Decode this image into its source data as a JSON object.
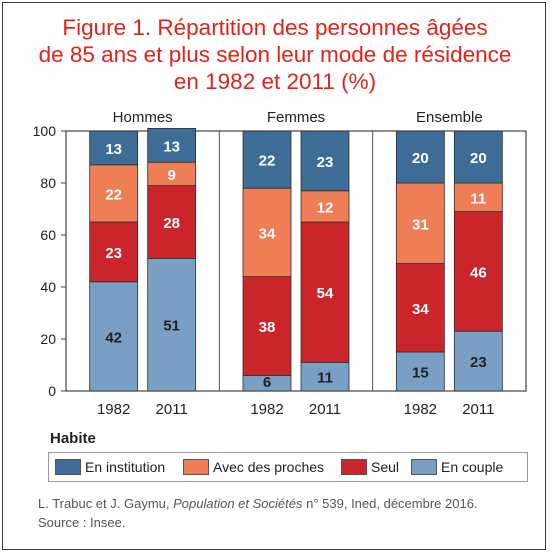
{
  "title_lines": [
    "Figure 1. Répartition des personnes âgées",
    "de 85 ans et plus selon leur mode de résidence",
    "en 1982 et 2011 (%)"
  ],
  "legend_title": "Habite",
  "source": {
    "authors": "L. Trabuc et J. Gaymu, ",
    "journal": "Population et Sociétés",
    "rest": " n° 539, Ined, décembre 2016.",
    "line2": "Source : Insee."
  },
  "colors": {
    "En institution": "#3d6d96",
    "Avec des proches": "#ef7e56",
    "Seul": "#c9252b",
    "En couple": "#7a9fc4",
    "label_dark": "#ffffff",
    "label_light": "#222222"
  },
  "chart_data": {
    "type": "bar",
    "stacked": true,
    "ylim": [
      0,
      100
    ],
    "yticks": [
      0,
      20,
      40,
      60,
      80,
      100
    ],
    "groups": [
      "Hommes",
      "Femmes",
      "Ensemble"
    ],
    "categories": [
      "1982",
      "2011"
    ],
    "series": [
      {
        "name": "En couple",
        "values": [
          [
            42,
            51
          ],
          [
            6,
            11
          ],
          [
            15,
            23
          ]
        ]
      },
      {
        "name": "Seul",
        "values": [
          [
            23,
            28
          ],
          [
            38,
            54
          ],
          [
            34,
            46
          ]
        ]
      },
      {
        "name": "Avec des proches",
        "values": [
          [
            22,
            9
          ],
          [
            34,
            12
          ],
          [
            31,
            11
          ]
        ]
      },
      {
        "name": "En institution",
        "values": [
          [
            13,
            13
          ],
          [
            22,
            23
          ],
          [
            20,
            20
          ]
        ]
      }
    ]
  }
}
